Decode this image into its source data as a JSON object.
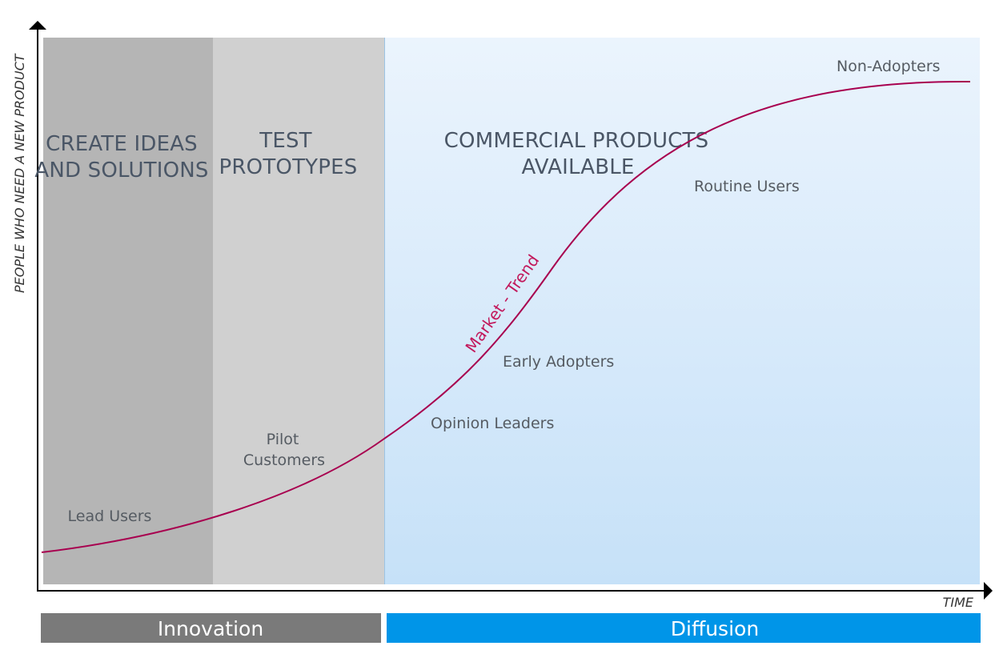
{
  "axes": {
    "y_label": "PEOPLE WHO NEED A NEW PRODUCT",
    "x_label": "TIME"
  },
  "phases": {
    "create": {
      "line1": "CREATE IDEAS",
      "line2": "AND SOLUTIONS"
    },
    "test": {
      "line1": "TEST",
      "line2": "PROTOTYPES"
    },
    "commercial": {
      "line1": "COMMERCIAL PRODUCTS",
      "line2": "AVAILABLE"
    }
  },
  "segments": {
    "lead_users": "Lead Users",
    "pilot_customers": {
      "line1": "Pilot",
      "line2": "Customers"
    },
    "opinion_leaders": "Opinion Leaders",
    "early_adopters": "Early Adopters",
    "routine_users": "Routine Users",
    "non_adopters": "Non-Adopters"
  },
  "curve": {
    "label": "Market - Trend",
    "color": "#a8004f"
  },
  "bands": {
    "innovation": "Innovation",
    "diffusion": "Diffusion"
  },
  "colors": {
    "create_panel": "#b5b5b5",
    "test_panel": "#d0d0d0",
    "innovation_band": "#7a7a7a",
    "diffusion_band": "#0095e8"
  }
}
